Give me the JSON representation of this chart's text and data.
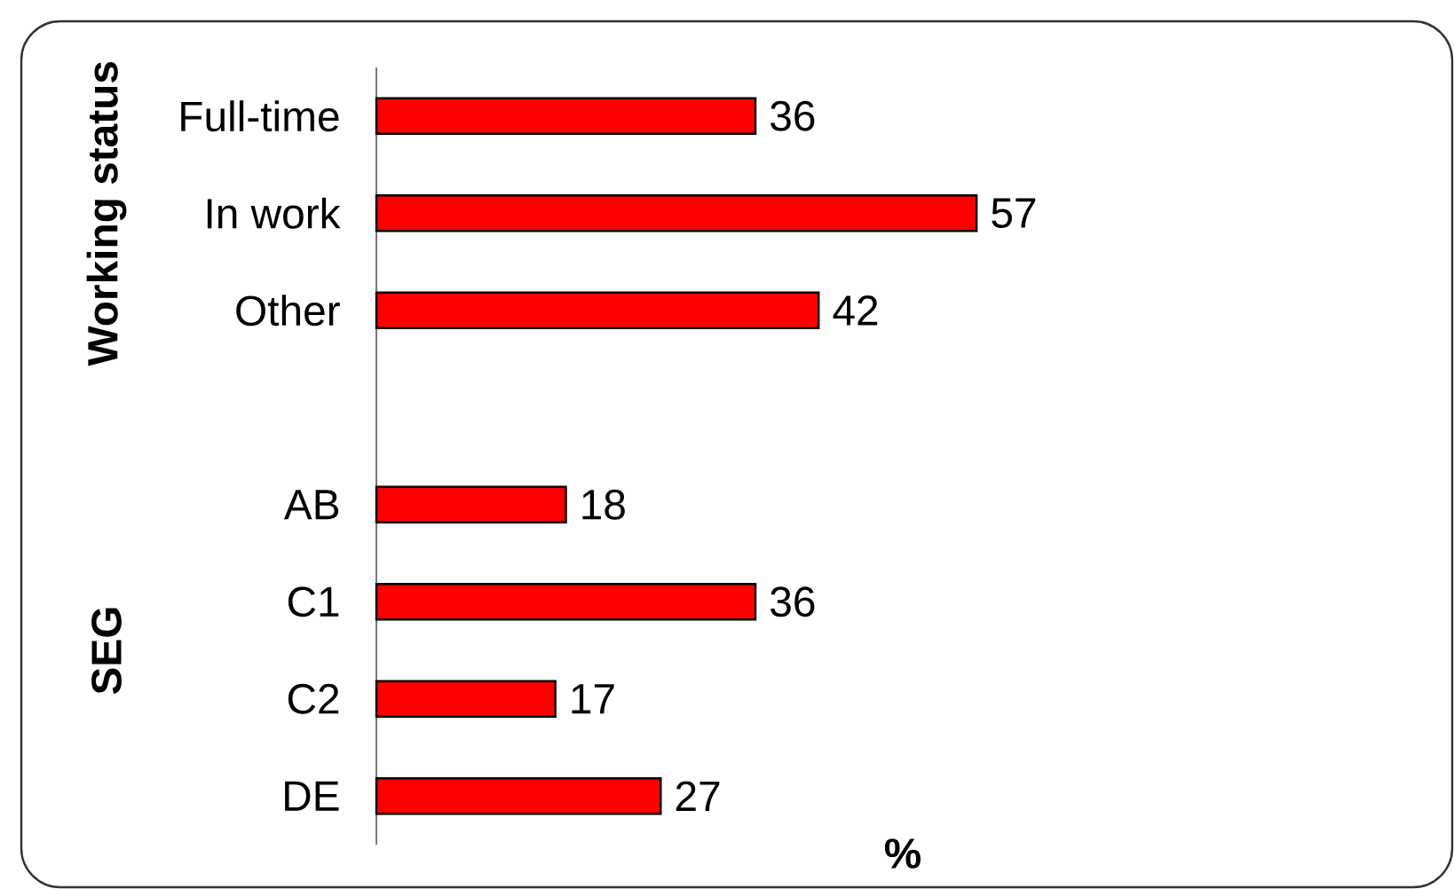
{
  "chart_data": {
    "type": "bar",
    "orientation": "horizontal",
    "xlabel": "%",
    "categories": [
      "Full-time",
      "In work",
      "Other",
      null,
      "AB",
      "C1",
      "C2",
      "DE"
    ],
    "values": [
      36,
      57,
      42,
      null,
      18,
      36,
      17,
      27
    ],
    "color": "#ff0000",
    "data_labels": true,
    "tick_labels": "y",
    "annotations": [
      "Working status",
      "SEG"
    ]
  }
}
